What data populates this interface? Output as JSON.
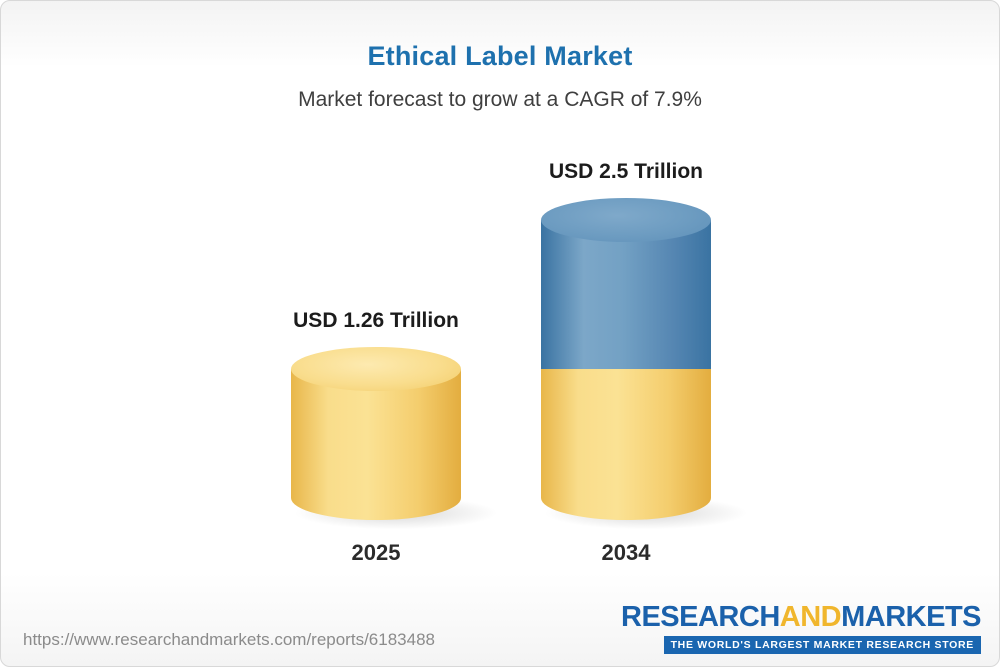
{
  "header": {
    "title": "Ethical Label Market",
    "subtitle": "Market forecast to grow at a CAGR of 7.9%"
  },
  "chart_data": {
    "type": "bar",
    "subtype": "3d-cylinder",
    "title": "Ethical Label Market",
    "subtitle": "Market forecast to grow at a CAGR of 7.9%",
    "cagr_percent": 7.9,
    "unit": "USD Trillion",
    "categories": [
      "2025",
      "2034"
    ],
    "values": [
      1.26,
      2.5
    ],
    "value_labels": [
      "USD 1.26 Trillion",
      "USD 2.5 Trillion"
    ],
    "legend": false,
    "colors": {
      "bar_2025": "#f6cf6b",
      "bar_2034_base": "#f6cf6b",
      "bar_2034_growth": "#5586b2",
      "title_blue": "#1e71ae"
    }
  },
  "footer": {
    "url": "https://www.researchandmarkets.com/reports/6183488",
    "logo": {
      "part1": "RESEARCH",
      "part2": "AND",
      "part3": "MARKETS",
      "tagline": "THE WORLD'S LARGEST MARKET RESEARCH STORE"
    }
  }
}
